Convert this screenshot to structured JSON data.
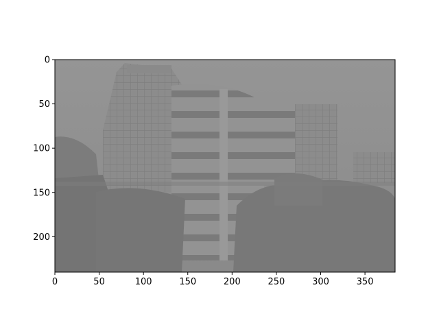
{
  "figure": {
    "image_description_colors": {
      "sky": "#979797",
      "building": "#8e8e8e",
      "trees": "#777777",
      "axes_edge": "#000000"
    }
  },
  "axes": {
    "x_ticks": [
      "0",
      "50",
      "100",
      "150",
      "200",
      "250",
      "300",
      "350"
    ],
    "y_ticks": [
      "0",
      "50",
      "100",
      "150",
      "200"
    ],
    "xlim": [
      0,
      384
    ],
    "ylim": [
      0,
      240
    ]
  }
}
